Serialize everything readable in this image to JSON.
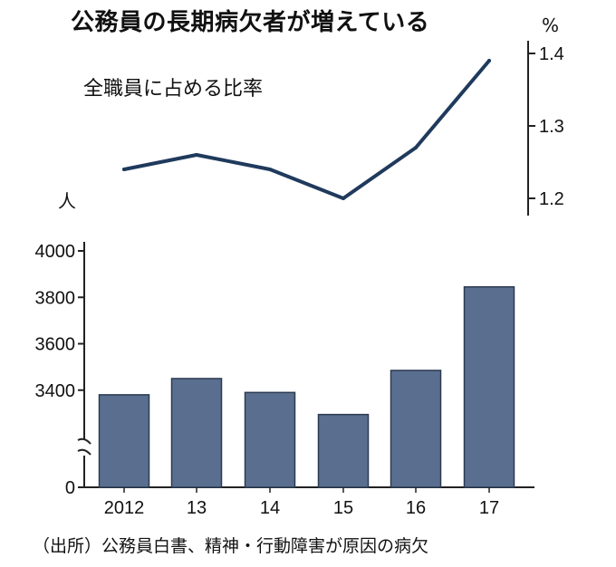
{
  "title": "公務員の長期病欠者が増えている",
  "source": "（出所）公務員白書、精神・行動障害が原因の病欠",
  "chart_data": [
    {
      "type": "line",
      "subtitle": "全職員に占める比率",
      "unit": "%",
      "x": [
        "2012",
        "13",
        "14",
        "15",
        "16",
        "17"
      ],
      "values": [
        1.24,
        1.26,
        1.24,
        1.2,
        1.27,
        1.39
      ],
      "ylim": [
        1.2,
        1.4
      ],
      "y_ticks": [
        "1.4",
        "1.3",
        "1.2"
      ],
      "color": "#1f3a5c"
    },
    {
      "type": "bar",
      "unit": "人",
      "categories": [
        "2012",
        "13",
        "14",
        "15",
        "16",
        "17"
      ],
      "values": [
        3380,
        3450,
        3390,
        3295,
        3485,
        3845
      ],
      "ylim": [
        0,
        4000
      ],
      "axis_break": true,
      "y_ticks": [
        "4000",
        "3800",
        "3600",
        "3400",
        "0"
      ],
      "color": "#5a6f8f"
    }
  ]
}
